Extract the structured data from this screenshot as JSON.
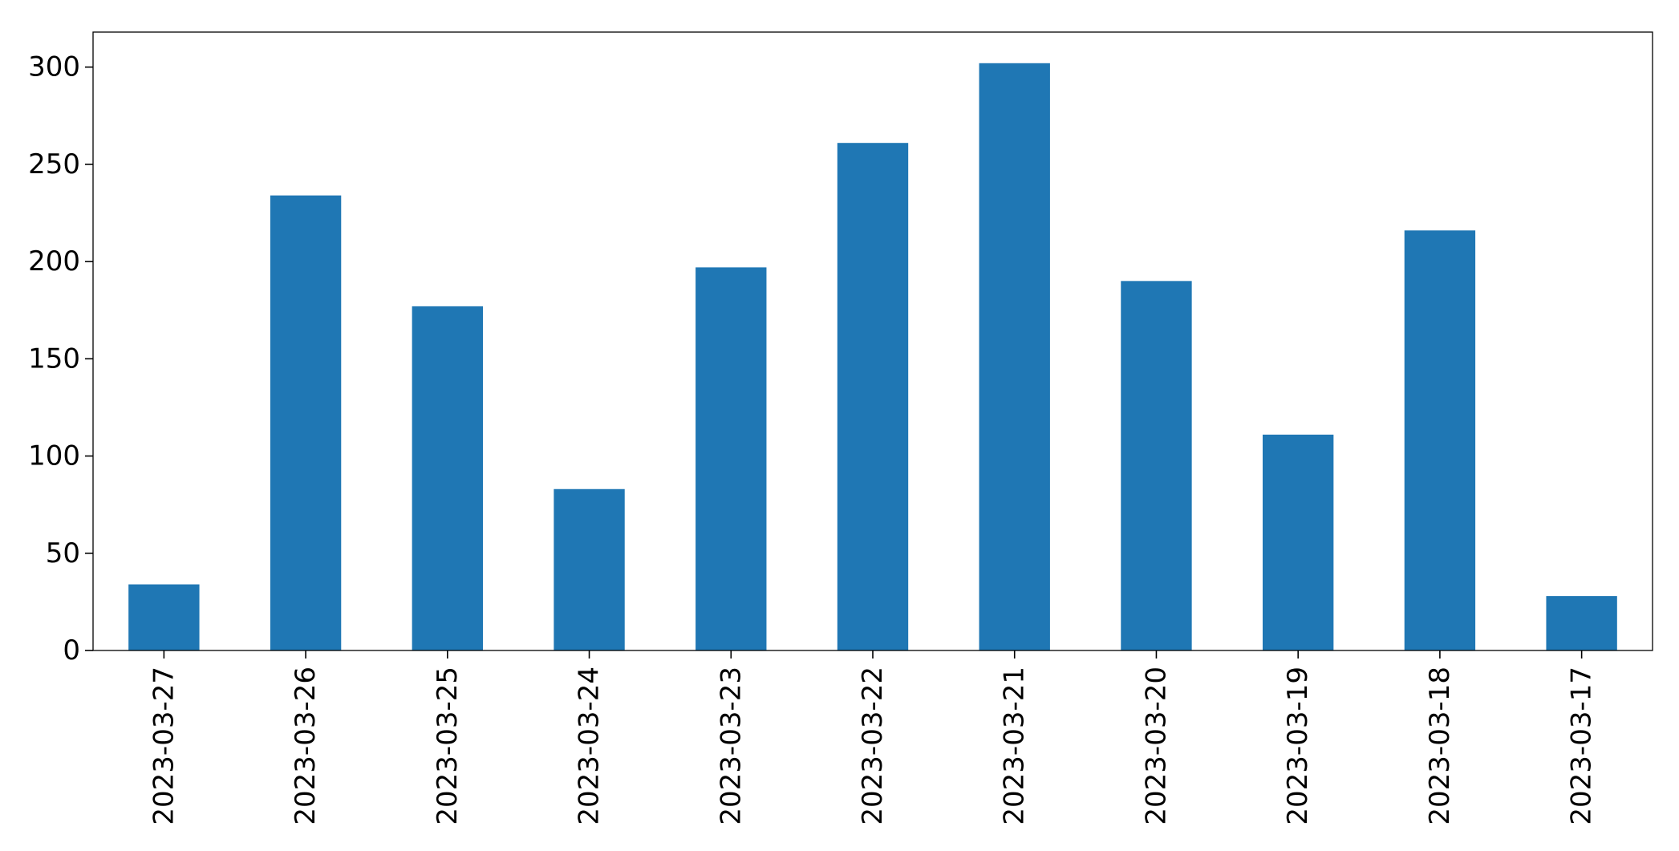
{
  "chart_data": {
    "type": "bar",
    "categories": [
      "2023-03-27",
      "2023-03-26",
      "2023-03-25",
      "2023-03-24",
      "2023-03-23",
      "2023-03-22",
      "2023-03-21",
      "2023-03-20",
      "2023-03-19",
      "2023-03-18",
      "2023-03-17"
    ],
    "values": [
      34,
      234,
      177,
      83,
      197,
      261,
      302,
      190,
      111,
      216,
      28
    ],
    "title": "",
    "xlabel": "",
    "ylabel": "",
    "ylim": [
      0,
      318
    ],
    "yticks": [
      0,
      50,
      100,
      150,
      200,
      250,
      300
    ],
    "x_tick_rotation": 90,
    "grid": false,
    "legend": "none",
    "bar_color": "#1f77b4"
  }
}
